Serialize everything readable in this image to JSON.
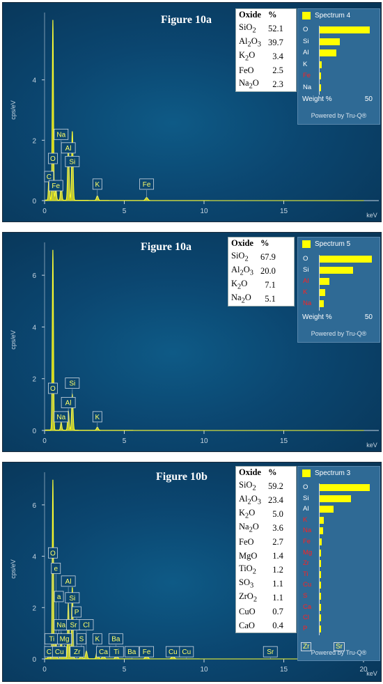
{
  "panels": [
    {
      "figure_title": "Figure 10a",
      "oxide_header": "Oxide",
      "pct_header": "%",
      "oxides": [
        {
          "name": "SiO2",
          "formula": [
            "SiO",
            "2",
            ""
          ],
          "value": "52.1"
        },
        {
          "name": "Al2O3",
          "formula": [
            "Al",
            "2",
            "O",
            "3",
            ""
          ],
          "value": "39.7"
        },
        {
          "name": "K2O",
          "formula": [
            "K",
            "2",
            "O"
          ],
          "value": "3.4"
        },
        {
          "name": "FeO",
          "formula": [
            "FeO"
          ],
          "value": "2.5"
        },
        {
          "name": "Na2O",
          "formula": [
            "Na",
            "2",
            "O"
          ],
          "value": "2.3"
        }
      ],
      "spectrum_label": "Spectrum 4",
      "weight_label": "Weight %",
      "weight_max": "50",
      "powered_by": "Powered by Tru-Q®",
      "element_bars": [
        {
          "el": "O",
          "value": 48,
          "color": "#ffffff"
        },
        {
          "el": "Si",
          "value": 19,
          "color": "#ffffff"
        },
        {
          "el": "Al",
          "value": 16,
          "color": "#ffffff"
        },
        {
          "el": "K",
          "value": 2,
          "color": "#ffffff"
        },
        {
          "el": "Fe",
          "value": 1.5,
          "color": "#ff2020"
        },
        {
          "el": "Na",
          "value": 1.5,
          "color": "#ffffff"
        }
      ],
      "y_axis_label": "cps/eV",
      "x_axis_label": "keV",
      "y_ticks": [
        "0",
        "2",
        "4"
      ],
      "y_max": 6,
      "x_ticks": [
        "0",
        "5",
        "10",
        "15"
      ],
      "x_max": 20,
      "peak_labels": [
        {
          "text": "Na",
          "x": 1.04,
          "y": 2.0
        },
        {
          "text": "O",
          "x": 0.52,
          "y": 1.2
        },
        {
          "text": "Al",
          "x": 1.49,
          "y": 1.55
        },
        {
          "text": "Si",
          "x": 1.74,
          "y": 1.1
        },
        {
          "text": "C",
          "x": 0.28,
          "y": 0.6
        },
        {
          "text": "Fe",
          "x": 0.71,
          "y": 0.3
        },
        {
          "text": "K",
          "x": 3.31,
          "y": 0.35
        },
        {
          "text": "Fe",
          "x": 6.4,
          "y": 0.35
        }
      ]
    },
    {
      "figure_title": "Figure 10a",
      "oxide_header": "Oxide",
      "pct_header": "%",
      "oxides": [
        {
          "name": "SiO2",
          "formula": [
            "SiO",
            "2",
            ""
          ],
          "value": "67.9"
        },
        {
          "name": "Al2O3",
          "formula": [
            "Al",
            "2",
            "O",
            "3",
            ""
          ],
          "value": "20.0"
        },
        {
          "name": "K2O",
          "formula": [
            "K",
            "2",
            "O"
          ],
          "value": "7.1"
        },
        {
          "name": "Na2O",
          "formula": [
            "Na",
            "2",
            "O"
          ],
          "value": "5.1"
        }
      ],
      "spectrum_label": "Spectrum 5",
      "weight_label": "Weight %",
      "weight_max": "50",
      "powered_by": "Powered by Tru-Q®",
      "element_bars": [
        {
          "el": "O",
          "value": 50,
          "color": "#ffffff"
        },
        {
          "el": "Si",
          "value": 32,
          "color": "#ffffff"
        },
        {
          "el": "Al",
          "value": 9,
          "color": "#ff2020"
        },
        {
          "el": "K",
          "value": 5,
          "color": "#ff2020"
        },
        {
          "el": "Na",
          "value": 4,
          "color": "#ff2020"
        }
      ],
      "y_axis_label": "cps/eV",
      "x_axis_label": "keV",
      "y_ticks": [
        "0",
        "2",
        "4",
        "6"
      ],
      "y_max": 7,
      "x_ticks": [
        "0",
        "5",
        "10",
        "15"
      ],
      "x_max": 20,
      "peak_labels": [
        {
          "text": "O",
          "x": 0.52,
          "y": 1.4
        },
        {
          "text": "Si",
          "x": 1.74,
          "y": 1.6
        },
        {
          "text": "Al",
          "x": 1.49,
          "y": 0.85
        },
        {
          "text": "Na",
          "x": 1.04,
          "y": 0.3
        },
        {
          "text": "K",
          "x": 3.31,
          "y": 0.3
        }
      ]
    },
    {
      "figure_title": "Figure 10b",
      "oxide_header": "Oxide",
      "pct_header": "%",
      "oxides": [
        {
          "name": "SiO2",
          "formula": [
            "SiO",
            "2",
            ""
          ],
          "value": "59.2"
        },
        {
          "name": "Al2O3",
          "formula": [
            "Al",
            "2",
            "O",
            "3",
            ""
          ],
          "value": "23.4"
        },
        {
          "name": "K2O",
          "formula": [
            "K",
            "2",
            "O"
          ],
          "value": "5.0"
        },
        {
          "name": "Na2O",
          "formula": [
            "Na",
            "2",
            "O"
          ],
          "value": "3.6"
        },
        {
          "name": "FeO",
          "formula": [
            "FeO"
          ],
          "value": "2.7"
        },
        {
          "name": "MgO",
          "formula": [
            "MgO"
          ],
          "value": "1.4"
        },
        {
          "name": "TiO2",
          "formula": [
            "TiO",
            "2",
            ""
          ],
          "value": "1.2"
        },
        {
          "name": "SO3",
          "formula": [
            "SO",
            "3",
            ""
          ],
          "value": "1.1"
        },
        {
          "name": "ZrO2",
          "formula": [
            "ZrO",
            "2",
            ""
          ],
          "value": "1.1"
        },
        {
          "name": "CuO",
          "formula": [
            "CuO"
          ],
          "value": "0.7"
        },
        {
          "name": "CaO",
          "formula": [
            "CaO"
          ],
          "value": "0.4"
        }
      ],
      "spectrum_label": "Spectrum 3",
      "weight_label": "",
      "weight_max": "",
      "powered_by": "Powered by Tru-Q®",
      "element_bars": [
        {
          "el": "O",
          "value": 48,
          "color": "#ffffff"
        },
        {
          "el": "Si",
          "value": 30,
          "color": "#ffffff"
        },
        {
          "el": "Al",
          "value": 13,
          "color": "#ffffff"
        },
        {
          "el": "K",
          "value": 4,
          "color": "#ff2020"
        },
        {
          "el": "Na",
          "value": 3,
          "color": "#ff2020"
        },
        {
          "el": "Fe",
          "value": 2,
          "color": "#ff2020"
        },
        {
          "el": "Mg",
          "value": 1,
          "color": "#ff2020"
        },
        {
          "el": "Zr",
          "value": 1,
          "color": "#ff2020"
        },
        {
          "el": "Ti",
          "value": 0.8,
          "color": "#ff2020"
        },
        {
          "el": "Cu",
          "value": 0.6,
          "color": "#ff2020"
        },
        {
          "el": "S",
          "value": 0.5,
          "color": "#ff2020"
        },
        {
          "el": "Ca",
          "value": 0.4,
          "color": "#ff2020"
        },
        {
          "el": "Cl",
          "value": 0.3,
          "color": "#ff2020"
        },
        {
          "el": "P",
          "value": 0.3,
          "color": "#ff2020"
        }
      ],
      "box_overlay_labels": [
        "Zr",
        "Sr"
      ],
      "y_axis_label": "cps/eV",
      "x_axis_label": "keV",
      "y_ticks": [
        "0",
        "2",
        "4",
        "6"
      ],
      "y_max": 7,
      "x_ticks": [
        "0",
        "5",
        "10",
        "15",
        "20"
      ],
      "x_max": 20,
      "peak_labels": [
        {
          "text": "O",
          "x": 0.52,
          "y": 3.9
        },
        {
          "text": "e",
          "x": 0.71,
          "y": 3.3
        },
        {
          "text": "Al",
          "x": 1.49,
          "y": 2.8
        },
        {
          "text": "a",
          "x": 0.9,
          "y": 2.2
        },
        {
          "text": "Si",
          "x": 1.74,
          "y": 2.15
        },
        {
          "text": "P",
          "x": 2.01,
          "y": 1.6
        },
        {
          "text": "Na",
          "x": 1.04,
          "y": 1.1
        },
        {
          "text": "Sr",
          "x": 1.81,
          "y": 1.1
        },
        {
          "text": "Cl",
          "x": 2.62,
          "y": 1.1
        },
        {
          "text": "Ti",
          "x": 0.45,
          "y": 0.55
        },
        {
          "text": "Mg",
          "x": 1.25,
          "y": 0.55
        },
        {
          "text": "S",
          "x": 2.31,
          "y": 0.55
        },
        {
          "text": "K",
          "x": 3.31,
          "y": 0.55
        },
        {
          "text": "Ba",
          "x": 4.47,
          "y": 0.55
        },
        {
          "text": "C",
          "x": 0.28,
          "y": 0.05
        },
        {
          "text": "Cu",
          "x": 0.93,
          "y": 0.05
        },
        {
          "text": "Zr",
          "x": 2.04,
          "y": 0.05
        },
        {
          "text": "Ca",
          "x": 3.69,
          "y": 0.05
        },
        {
          "text": "Ti",
          "x": 4.51,
          "y": 0.05
        },
        {
          "text": "Ba",
          "x": 5.47,
          "y": 0.05
        },
        {
          "text": "Fe",
          "x": 6.4,
          "y": 0.05
        },
        {
          "text": "Cu",
          "x": 8.05,
          "y": 0.05
        },
        {
          "text": "Cu",
          "x": 8.9,
          "y": 0.05
        },
        {
          "text": "Sr",
          "x": 14.16,
          "y": 0.05
        }
      ]
    }
  ],
  "chart_data": [
    {
      "type": "line",
      "title": "Figure 10a",
      "series_label": "Spectrum 4",
      "xlabel": "keV",
      "ylabel": "cps/eV",
      "xlim": [
        0,
        20
      ],
      "ylim": [
        0,
        6
      ],
      "x": [
        0.28,
        0.52,
        0.71,
        1.04,
        1.49,
        1.74,
        3.31,
        6.4
      ],
      "series": [
        {
          "name": "Spectrum 4",
          "values": [
            0.9,
            6.0,
            0.4,
            0.6,
            1.9,
            2.3,
            0.15,
            0.1
          ]
        }
      ],
      "peaks": [
        "C",
        "O",
        "Fe",
        "Na",
        "Al",
        "Si",
        "K",
        "Fe"
      ]
    },
    {
      "type": "line",
      "title": "Figure 10a",
      "series_label": "Spectrum 5",
      "xlabel": "keV",
      "ylabel": "cps/eV",
      "xlim": [
        0,
        20
      ],
      "ylim": [
        0,
        7
      ],
      "x": [
        0.52,
        1.04,
        1.49,
        1.74,
        3.31
      ],
      "series": [
        {
          "name": "Spectrum 5",
          "values": [
            7.0,
            0.3,
            0.75,
            1.4,
            0.12
          ]
        }
      ],
      "peaks": [
        "O",
        "Na",
        "Al",
        "Si",
        "K"
      ]
    },
    {
      "type": "line",
      "title": "Figure 10b",
      "series_label": "Spectrum 3",
      "xlabel": "keV",
      "ylabel": "cps/eV",
      "xlim": [
        0,
        20
      ],
      "ylim": [
        0,
        7
      ],
      "x": [
        0.28,
        0.52,
        0.71,
        1.04,
        1.25,
        1.49,
        1.74,
        2.31,
        2.62,
        3.31,
        3.69,
        4.51,
        6.4,
        8.05
      ],
      "series": [
        {
          "name": "Spectrum 3",
          "values": [
            0.4,
            7.0,
            0.9,
            1.0,
            0.5,
            2.2,
            2.8,
            0.3,
            0.3,
            0.4,
            0.2,
            0.2,
            0.15,
            0.1
          ]
        }
      ],
      "peaks": [
        "C",
        "O",
        "Fe",
        "Na",
        "Mg",
        "Al",
        "Si",
        "S",
        "Cl",
        "K",
        "Ca",
        "Ti",
        "Fe",
        "Cu"
      ]
    }
  ]
}
